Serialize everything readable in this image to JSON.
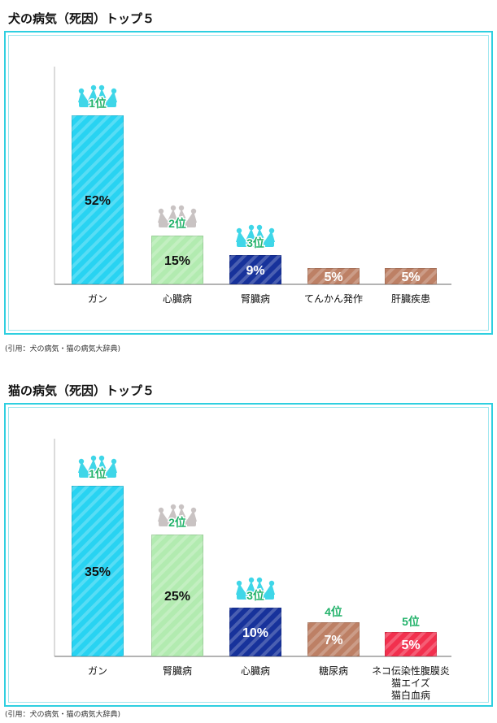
{
  "colors": {
    "frame": "#2ecfe0",
    "cyan": "#28d3f2",
    "light_green": "#b2ebb0",
    "navy": "#17329b",
    "brown": "#bd8065",
    "red": "#f2304e",
    "rank_green": "#22b26a",
    "crown_cyan": "#3fd6e8",
    "crown_gray": "#c9c3c3"
  },
  "dog_section": {
    "title": "犬の病気（死因）トップ５",
    "citation": "(引用：犬の病気・猫の病気大辞典)"
  },
  "cat_section": {
    "title": "猫の病気（死因）トップ５",
    "citation": "(引用：犬の病気・猫の病気大辞典)"
  },
  "chart_data": [
    {
      "type": "bar",
      "title": "犬の病気（死因）トップ５",
      "categories": [
        "ガン",
        "心臓病",
        "腎臓病",
        "てんかん発作",
        "肝臓疾患"
      ],
      "values": [
        52,
        15,
        9,
        5,
        5
      ],
      "value_labels": [
        "52%",
        "15%",
        "9%",
        "5%",
        "5%"
      ],
      "rank_labels": [
        "1位",
        "2位",
        "3位",
        "",
        ""
      ],
      "bar_colors": [
        "cyan",
        "light_green",
        "navy",
        "brown",
        "brown"
      ],
      "value_text_colors": [
        "#111111",
        "#111111",
        "#ffffff",
        "#ffffff",
        "#ffffff"
      ],
      "crowns": [
        "cyan",
        "gray",
        "cyan",
        "",
        ""
      ],
      "ylim": [
        0,
        60
      ],
      "grid": false
    },
    {
      "type": "bar",
      "title": "猫の病気（死因）トップ５",
      "categories": [
        "ガン",
        "腎臓病",
        "心臓病",
        "糖尿病",
        "ネコ伝染性腹膜炎\n猫エイズ\n猫白血病"
      ],
      "values": [
        35,
        25,
        10,
        7,
        5
      ],
      "value_labels": [
        "35%",
        "25%",
        "10%",
        "7%",
        "5%"
      ],
      "rank_labels": [
        "1位",
        "2位",
        "3位",
        "4位",
        "5位"
      ],
      "bar_colors": [
        "cyan",
        "light_green",
        "navy",
        "brown",
        "red"
      ],
      "value_text_colors": [
        "#111111",
        "#111111",
        "#ffffff",
        "#ffffff",
        "#ffffff"
      ],
      "crowns": [
        "cyan",
        "gray",
        "cyan",
        "",
        ""
      ],
      "ylim": [
        0,
        40
      ],
      "grid": false
    }
  ]
}
